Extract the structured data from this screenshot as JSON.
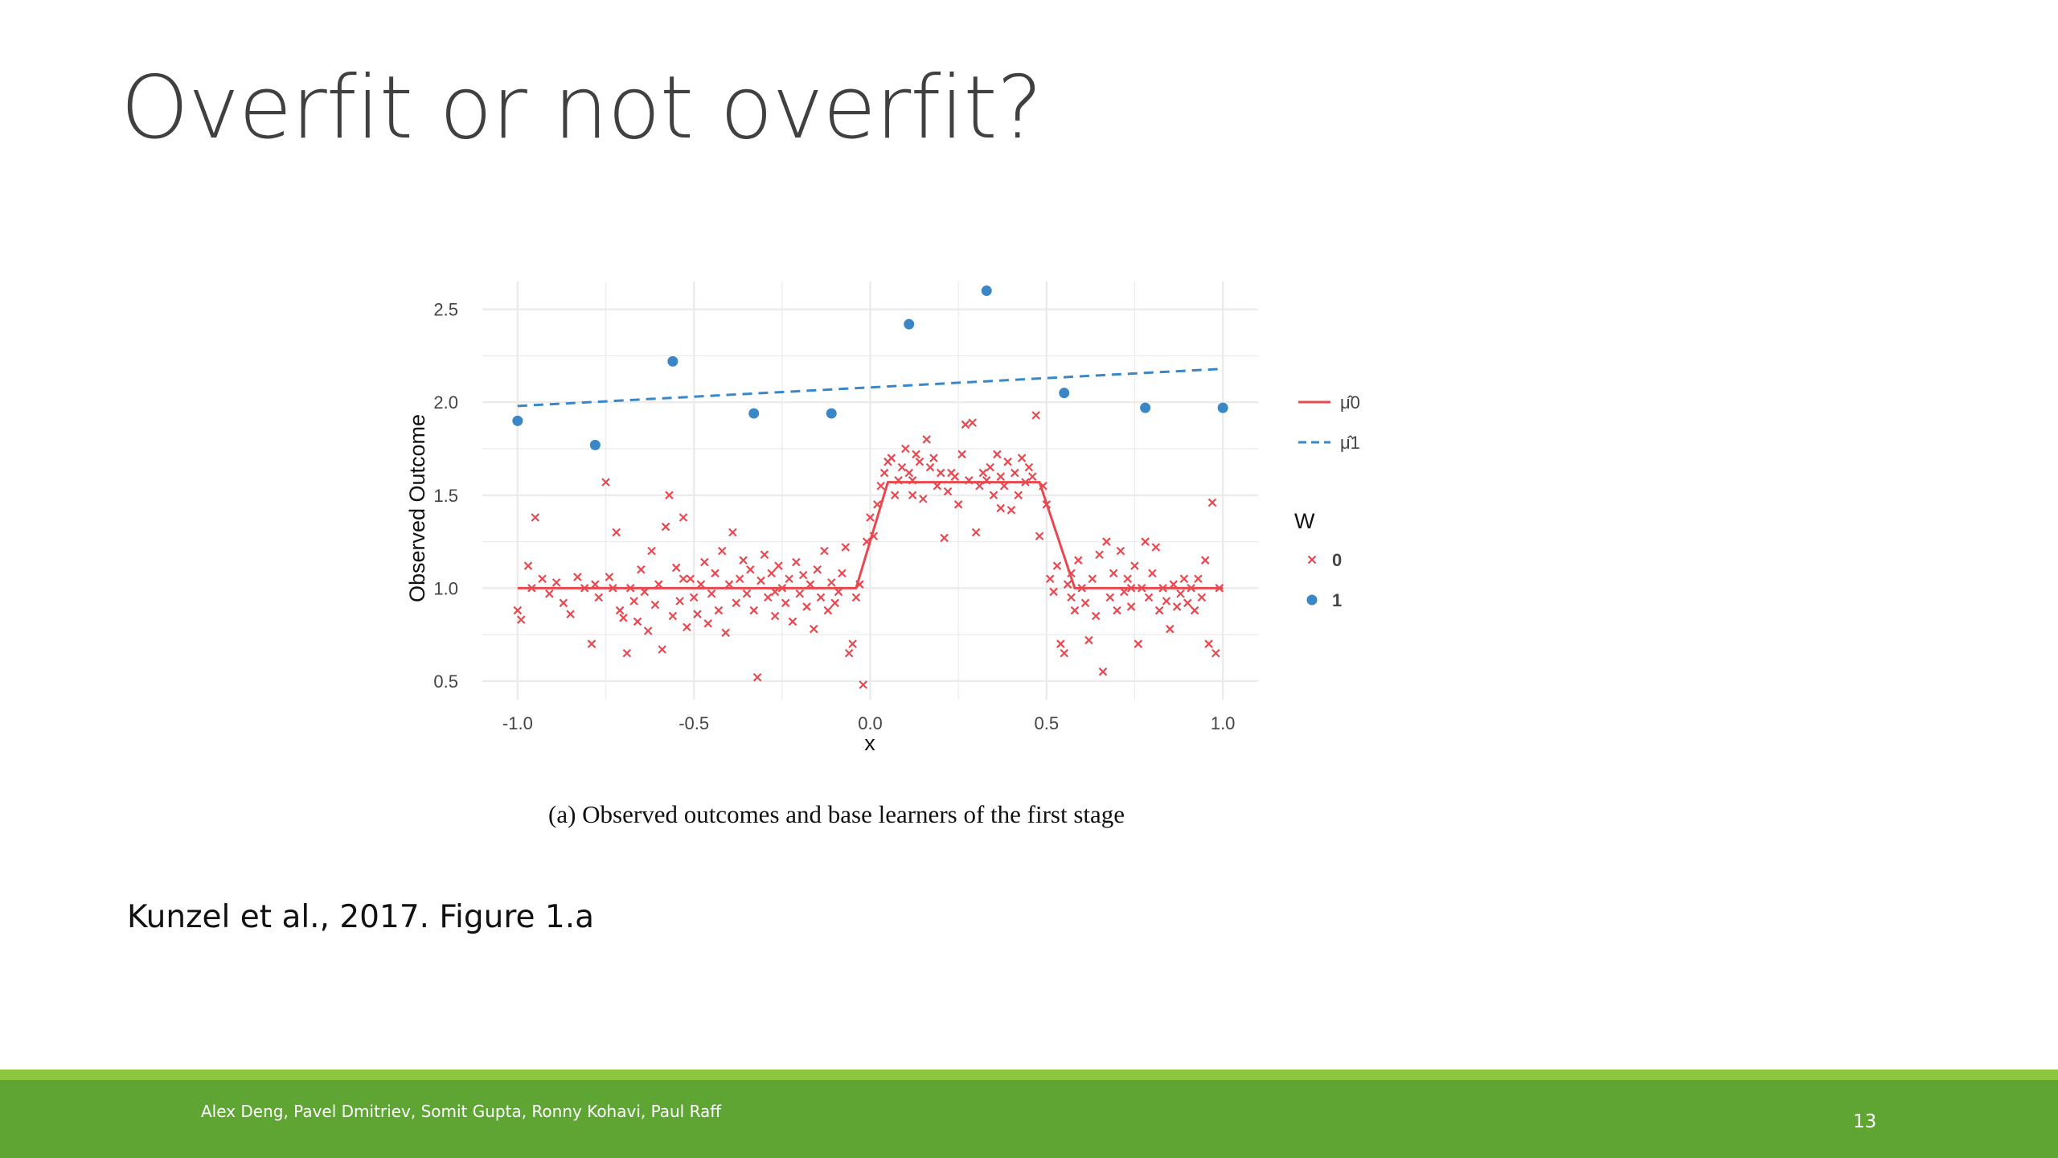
{
  "slide": {
    "title": "Overfit or not overfit?",
    "caption": "(a) Observed outcomes and base learners of the first stage",
    "citation": "Kunzel et al., 2017. Figure 1.a",
    "footer_authors": "Alex Deng, Pavel Dmitriev, Somit Gupta, Ronny Kohavi, Paul Raff",
    "page_number": "13"
  },
  "colors": {
    "footer_green": "#5fa534",
    "footer_stripe": "#8dc63f",
    "control_red": "#e8484f",
    "treatment_blue": "#3a87c8"
  },
  "chart_data": {
    "type": "scatter",
    "title": "",
    "xlabel": "x",
    "ylabel": "Observed Outcome",
    "xlim": [
      -1.1,
      1.1
    ],
    "ylim": [
      0.4,
      2.65
    ],
    "xticks": [
      "-1.0",
      "-0.5",
      "0.0",
      "0.5",
      "1.0"
    ],
    "yticks": [
      "0.5",
      "1.0",
      "1.5",
      "2.0",
      "2.5"
    ],
    "grid": true,
    "legend_position": "right",
    "legend": {
      "lines": [
        {
          "label": "μ̂0",
          "style": "solid",
          "color": "#e8484f"
        },
        {
          "label": "μ̂1",
          "style": "dashed",
          "color": "#3a87c8"
        }
      ],
      "group_title": "W",
      "groups": [
        {
          "label": "0",
          "marker": "cross",
          "color": "#e8484f"
        },
        {
          "label": "1",
          "marker": "dot",
          "color": "#3a87c8"
        }
      ]
    },
    "series": [
      {
        "name": "1",
        "marker": "dot",
        "points": [
          [
            -1.0,
            1.9
          ],
          [
            -0.78,
            1.77
          ],
          [
            -0.56,
            2.22
          ],
          [
            -0.33,
            1.94
          ],
          [
            -0.11,
            1.94
          ],
          [
            0.11,
            2.42
          ],
          [
            0.33,
            2.6
          ],
          [
            0.55,
            2.05
          ],
          [
            0.78,
            1.97
          ],
          [
            1.0,
            1.97
          ]
        ]
      },
      {
        "name": "0",
        "marker": "cross",
        "points": [
          [
            -1.0,
            0.88
          ],
          [
            -0.99,
            0.83
          ],
          [
            -0.97,
            1.12
          ],
          [
            -0.95,
            1.38
          ],
          [
            -0.93,
            1.05
          ],
          [
            -0.91,
            0.97
          ],
          [
            -0.89,
            1.03
          ],
          [
            -0.87,
            0.92
          ],
          [
            -0.85,
            0.86
          ],
          [
            -0.83,
            1.06
          ],
          [
            -0.81,
            1.0
          ],
          [
            -0.79,
            0.7
          ],
          [
            -0.78,
            1.02
          ],
          [
            -0.77,
            0.95
          ],
          [
            -0.75,
            1.57
          ],
          [
            -0.74,
            1.06
          ],
          [
            -0.72,
            1.3
          ],
          [
            -0.71,
            0.88
          ],
          [
            -0.7,
            0.84
          ],
          [
            -0.69,
            0.65
          ],
          [
            -0.68,
            1.0
          ],
          [
            -0.67,
            0.93
          ],
          [
            -0.66,
            0.82
          ],
          [
            -0.65,
            1.1
          ],
          [
            -0.64,
            0.98
          ],
          [
            -0.63,
            0.77
          ],
          [
            -0.62,
            1.2
          ],
          [
            -0.61,
            0.91
          ],
          [
            -0.6,
            1.02
          ],
          [
            -0.59,
            0.67
          ],
          [
            -0.58,
            1.33
          ],
          [
            -0.57,
            1.5
          ],
          [
            -0.56,
            0.85
          ],
          [
            -0.55,
            1.11
          ],
          [
            -0.54,
            0.93
          ],
          [
            -0.53,
            1.38
          ],
          [
            -0.52,
            0.79
          ],
          [
            -0.51,
            1.05
          ],
          [
            -0.5,
            0.95
          ],
          [
            -0.49,
            0.86
          ],
          [
            -0.48,
            1.02
          ],
          [
            -0.47,
            1.14
          ],
          [
            -0.46,
            0.81
          ],
          [
            -0.45,
            0.97
          ],
          [
            -0.44,
            1.08
          ],
          [
            -0.43,
            0.88
          ],
          [
            -0.42,
            1.2
          ],
          [
            -0.41,
            0.76
          ],
          [
            -0.4,
            1.02
          ],
          [
            -0.39,
            1.3
          ],
          [
            -0.38,
            0.92
          ],
          [
            -0.37,
            1.05
          ],
          [
            -0.36,
            1.15
          ],
          [
            -0.35,
            0.97
          ],
          [
            -0.34,
            1.1
          ],
          [
            -0.33,
            0.88
          ],
          [
            -0.32,
            0.52
          ],
          [
            -0.31,
            1.04
          ],
          [
            -0.3,
            1.18
          ],
          [
            -0.29,
            0.95
          ],
          [
            -0.28,
            1.08
          ],
          [
            -0.27,
            0.85
          ],
          [
            -0.26,
            1.12
          ],
          [
            -0.25,
            1.0
          ],
          [
            -0.24,
            0.92
          ],
          [
            -0.23,
            1.05
          ],
          [
            -0.22,
            0.82
          ],
          [
            -0.21,
            1.14
          ],
          [
            -0.2,
            0.97
          ],
          [
            -0.19,
            1.07
          ],
          [
            -0.18,
            0.9
          ],
          [
            -0.17,
            1.02
          ],
          [
            -0.16,
            0.78
          ],
          [
            -0.15,
            1.1
          ],
          [
            -0.14,
            0.95
          ],
          [
            -0.13,
            1.2
          ],
          [
            -0.12,
            0.88
          ],
          [
            -0.11,
            1.03
          ],
          [
            -0.1,
            0.92
          ],
          [
            -0.09,
            0.98
          ],
          [
            -0.08,
            1.08
          ],
          [
            -0.07,
            1.22
          ],
          [
            -0.06,
            0.65
          ],
          [
            -0.05,
            0.7
          ],
          [
            -0.04,
            0.95
          ],
          [
            -0.03,
            1.02
          ],
          [
            -0.02,
            0.48
          ],
          [
            -0.01,
            1.25
          ],
          [
            0.0,
            1.38
          ],
          [
            0.01,
            1.28
          ],
          [
            0.02,
            1.45
          ],
          [
            0.03,
            1.55
          ],
          [
            0.04,
            1.62
          ],
          [
            0.05,
            1.68
          ],
          [
            0.06,
            1.7
          ],
          [
            0.07,
            1.5
          ],
          [
            0.08,
            1.58
          ],
          [
            0.09,
            1.65
          ],
          [
            0.1,
            1.75
          ],
          [
            0.11,
            1.62
          ],
          [
            0.12,
            1.58
          ],
          [
            0.13,
            1.72
          ],
          [
            0.14,
            1.68
          ],
          [
            0.15,
            1.48
          ],
          [
            0.16,
            1.8
          ],
          [
            0.17,
            1.65
          ],
          [
            0.18,
            1.7
          ],
          [
            0.19,
            1.55
          ],
          [
            0.2,
            1.62
          ],
          [
            0.21,
            1.27
          ],
          [
            0.22,
            1.52
          ],
          [
            0.23,
            1.62
          ],
          [
            0.24,
            1.6
          ],
          [
            0.25,
            1.45
          ],
          [
            0.26,
            1.72
          ],
          [
            0.27,
            1.88
          ],
          [
            0.28,
            1.58
          ],
          [
            0.29,
            1.89
          ],
          [
            0.3,
            1.3
          ],
          [
            0.31,
            1.55
          ],
          [
            0.32,
            1.62
          ],
          [
            0.33,
            1.58
          ],
          [
            0.34,
            1.65
          ],
          [
            0.35,
            1.5
          ],
          [
            0.36,
            1.72
          ],
          [
            0.37,
            1.6
          ],
          [
            0.38,
            1.55
          ],
          [
            0.39,
            1.68
          ],
          [
            0.4,
            1.42
          ],
          [
            0.41,
            1.62
          ],
          [
            0.42,
            1.5
          ],
          [
            0.43,
            1.7
          ],
          [
            0.44,
            1.57
          ],
          [
            0.45,
            1.65
          ],
          [
            0.46,
            1.6
          ],
          [
            0.47,
            1.93
          ],
          [
            0.48,
            1.28
          ],
          [
            0.49,
            1.55
          ],
          [
            0.5,
            1.45
          ],
          [
            0.51,
            1.05
          ],
          [
            0.52,
            0.98
          ],
          [
            0.53,
            1.12
          ],
          [
            0.54,
            0.7
          ],
          [
            0.55,
            0.65
          ],
          [
            0.56,
            1.02
          ],
          [
            0.57,
            0.95
          ],
          [
            0.58,
            0.88
          ],
          [
            0.59,
            1.15
          ],
          [
            0.6,
            1.0
          ],
          [
            0.61,
            0.92
          ],
          [
            0.62,
            0.72
          ],
          [
            0.63,
            1.05
          ],
          [
            0.64,
            0.85
          ],
          [
            0.65,
            1.18
          ],
          [
            0.66,
            0.55
          ],
          [
            0.67,
            1.25
          ],
          [
            0.68,
            0.95
          ],
          [
            0.69,
            1.08
          ],
          [
            0.7,
            0.88
          ],
          [
            0.71,
            1.2
          ],
          [
            0.72,
            0.98
          ],
          [
            0.73,
            1.05
          ],
          [
            0.74,
            0.9
          ],
          [
            0.75,
            1.12
          ],
          [
            0.76,
            0.7
          ],
          [
            0.77,
            1.0
          ],
          [
            0.78,
            1.25
          ],
          [
            0.79,
            0.95
          ],
          [
            0.8,
            1.08
          ],
          [
            0.81,
            1.22
          ],
          [
            0.82,
            0.88
          ],
          [
            0.83,
            1.0
          ],
          [
            0.84,
            0.93
          ],
          [
            0.85,
            0.78
          ],
          [
            0.86,
            1.02
          ],
          [
            0.87,
            0.9
          ],
          [
            0.88,
            0.97
          ],
          [
            0.89,
            1.05
          ],
          [
            0.9,
            0.92
          ],
          [
            0.91,
            1.0
          ],
          [
            0.92,
            0.88
          ],
          [
            0.93,
            1.05
          ],
          [
            0.94,
            0.95
          ],
          [
            0.95,
            1.15
          ],
          [
            0.96,
            0.7
          ],
          [
            0.97,
            1.46
          ],
          [
            0.98,
            0.65
          ],
          [
            0.99,
            1.0
          ],
          [
            -0.96,
            1.0
          ],
          [
            -0.73,
            1.0
          ],
          [
            -0.53,
            1.05
          ],
          [
            -0.27,
            0.98
          ],
          [
            0.12,
            1.5
          ],
          [
            0.37,
            1.43
          ],
          [
            0.57,
            1.08
          ],
          [
            0.74,
            1.0
          ]
        ]
      }
    ],
    "lines": [
      {
        "name": "μ̂0",
        "style": "solid",
        "points": [
          [
            -1.0,
            1.0
          ],
          [
            -0.04,
            1.0
          ],
          [
            0.05,
            1.57
          ],
          [
            0.48,
            1.57
          ],
          [
            0.58,
            1.0
          ],
          [
            1.0,
            1.0
          ]
        ]
      },
      {
        "name": "μ̂1",
        "style": "dashed",
        "points": [
          [
            -1.0,
            1.98
          ],
          [
            1.0,
            2.18
          ]
        ]
      }
    ]
  }
}
